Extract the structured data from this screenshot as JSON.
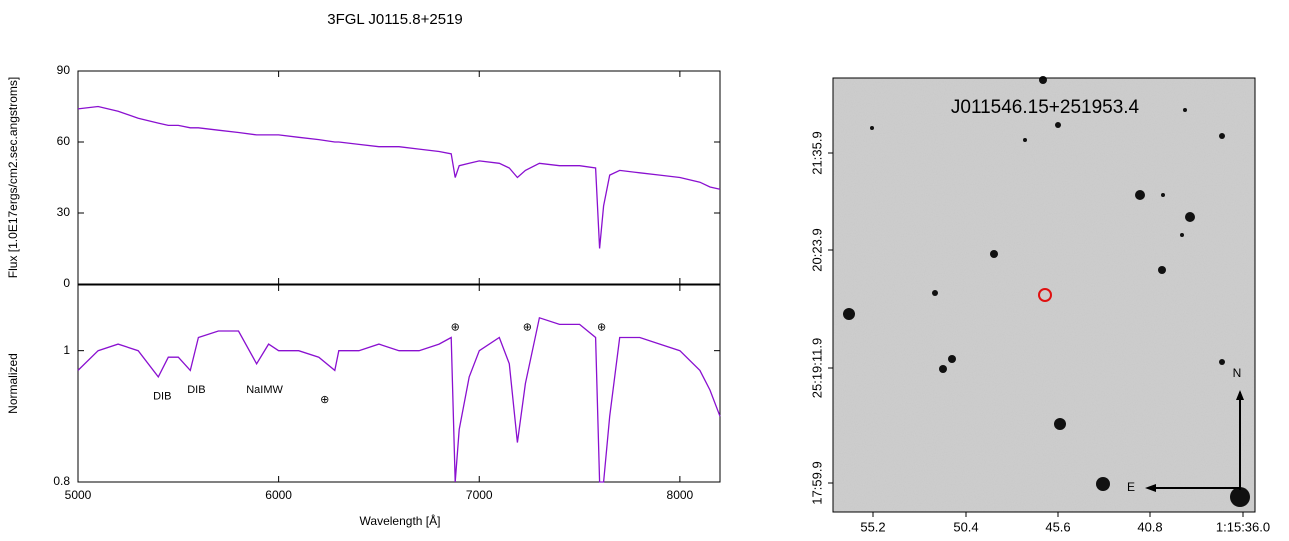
{
  "chart_data": [
    {
      "type": "line",
      "title": "3FGL J0115.8+2519",
      "ylabel": "Flux [1.0E17ergs/cm2.sec.angstroms]",
      "xlim": [
        5000,
        8200
      ],
      "xticks": [
        5000,
        6000,
        7000,
        8000
      ],
      "ylim": [
        0,
        90
      ],
      "yticks": [
        0,
        30,
        60,
        90
      ],
      "x": [
        5000,
        5100,
        5200,
        5300,
        5400,
        5450,
        5500,
        5560,
        5600,
        5700,
        5800,
        5890,
        5950,
        6000,
        6100,
        6200,
        6280,
        6300,
        6400,
        6500,
        6600,
        6700,
        6800,
        6860,
        6880,
        6900,
        6950,
        7000,
        7100,
        7150,
        7190,
        7230,
        7300,
        7400,
        7500,
        7580,
        7600,
        7620,
        7650,
        7700,
        7800,
        7900,
        8000,
        8100,
        8150,
        8200
      ],
      "series": [
        {
          "color": "#8a10d0",
          "values": [
            74,
            75,
            73,
            70,
            68,
            67,
            67,
            66,
            66,
            65,
            64,
            63,
            63,
            63,
            62,
            61,
            60,
            60,
            59,
            58,
            58,
            57,
            56,
            55,
            45,
            50,
            51,
            52,
            51,
            49,
            45,
            48,
            51,
            50,
            50,
            49,
            15,
            33,
            46,
            48,
            47,
            46,
            45,
            43,
            41,
            40
          ]
        }
      ]
    },
    {
      "type": "line",
      "ylabel": "Normalized",
      "xlabel": "Wavelength [Å]",
      "xlim": [
        5000,
        8200
      ],
      "xticks": [
        5000,
        6000,
        7000,
        8000
      ],
      "ylim": [
        0.8,
        1.1
      ],
      "yticks": [
        0.8,
        1
      ],
      "x": [
        5000,
        5100,
        5200,
        5300,
        5400,
        5450,
        5500,
        5560,
        5600,
        5700,
        5800,
        5890,
        5950,
        6000,
        6100,
        6200,
        6280,
        6300,
        6400,
        6500,
        6600,
        6700,
        6800,
        6860,
        6880,
        6900,
        6950,
        7000,
        7100,
        7150,
        7190,
        7230,
        7300,
        7400,
        7500,
        7580,
        7600,
        7620,
        7650,
        7700,
        7800,
        7900,
        8000,
        8100,
        8150,
        8200
      ],
      "series": [
        {
          "color": "#8a10d0",
          "values": [
            0.97,
            1.0,
            1.01,
            1.0,
            0.96,
            0.99,
            0.99,
            0.97,
            1.02,
            1.03,
            1.03,
            0.98,
            1.01,
            1.0,
            1.0,
            0.99,
            0.97,
            1.0,
            1.0,
            1.01,
            1.0,
            1.0,
            1.01,
            1.02,
            0.8,
            0.88,
            0.96,
            1.0,
            1.02,
            0.98,
            0.86,
            0.95,
            1.05,
            1.04,
            1.04,
            1.02,
            0.8,
            0.8,
            0.9,
            1.02,
            1.02,
            1.01,
            1.0,
            0.97,
            0.94,
            0.9
          ]
        }
      ],
      "annotations": [
        {
          "text": "DIB",
          "x": 5420,
          "y": 0.93
        },
        {
          "text": "DIB",
          "x": 5590,
          "y": 0.94
        },
        {
          "text": "NaIMW",
          "x": 5930,
          "y": 0.94
        },
        {
          "text": "⊕",
          "x": 6230,
          "y": 0.925
        },
        {
          "text": "⊕",
          "x": 6880,
          "y": 1.035
        },
        {
          "text": "⊕",
          "x": 7240,
          "y": 1.035
        },
        {
          "text": "⊕",
          "x": 7610,
          "y": 1.035
        }
      ]
    },
    {
      "type": "image",
      "title": "J011546.15+251953.4",
      "xticks": [
        "55.2",
        "50.4",
        "45.6",
        "40.8",
        "1:15:36.0"
      ],
      "yticks": [
        "17:59.9",
        "25:19:11.9",
        "20:23.9",
        "21:35.9"
      ],
      "compass": [
        "N",
        "E"
      ]
    }
  ]
}
